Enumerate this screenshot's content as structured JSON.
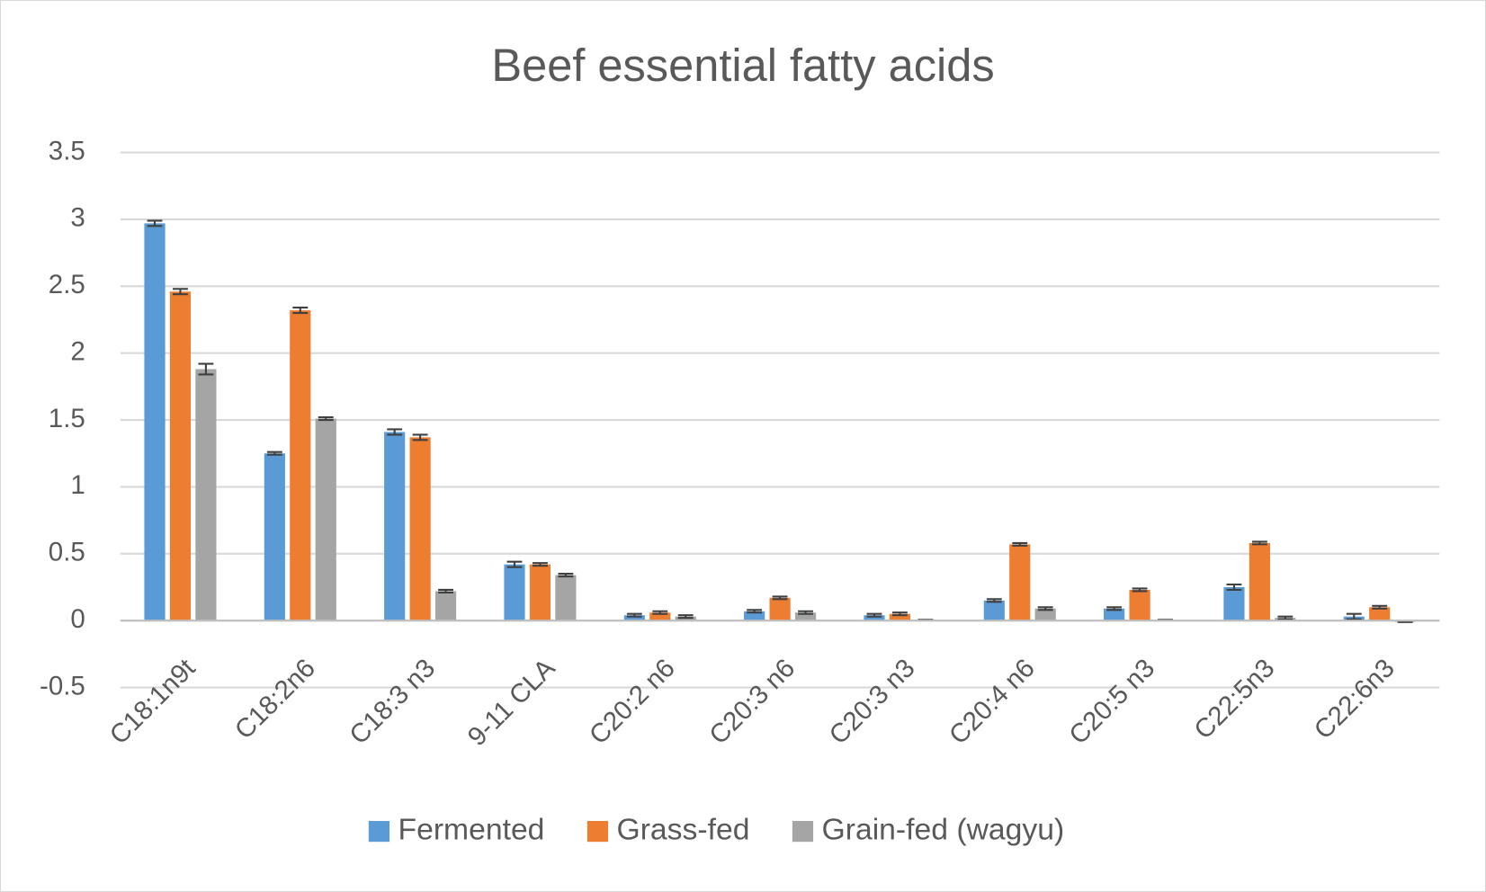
{
  "chart_data": {
    "type": "bar",
    "title": "Beef essential fatty acids",
    "categories": [
      "C18:1n9t",
      "C18:2n6",
      "C18:3 n3",
      "9-11 CLA",
      "C20:2 n6",
      "C20:3 n6",
      "C20:3 n3",
      "C20:4 n6",
      "C20:5 n3",
      "C22:5n3",
      "C22:6n3"
    ],
    "series": [
      {
        "name": "Fermented",
        "color": "#5b9bd5",
        "values": [
          2.97,
          1.25,
          1.41,
          0.42,
          0.04,
          0.07,
          0.04,
          0.15,
          0.09,
          0.25,
          0.03
        ],
        "errors": [
          0.02,
          0.01,
          0.02,
          0.02,
          0.01,
          0.01,
          0.01,
          0.01,
          0.01,
          0.02,
          0.02
        ]
      },
      {
        "name": "Grass-fed",
        "color": "#ed7d31",
        "values": [
          2.46,
          2.32,
          1.37,
          0.42,
          0.06,
          0.17,
          0.05,
          0.57,
          0.23,
          0.58,
          0.1
        ],
        "errors": [
          0.02,
          0.02,
          0.02,
          0.01,
          0.01,
          0.01,
          0.01,
          0.01,
          0.01,
          0.01,
          0.01
        ]
      },
      {
        "name": "Grain-fed (wagyu)",
        "color": "#a5a5a5",
        "values": [
          1.88,
          1.51,
          0.22,
          0.34,
          0.03,
          0.06,
          0.005,
          0.09,
          0.005,
          0.02,
          -0.01
        ],
        "errors": [
          0.04,
          0.01,
          0.01,
          0.01,
          0.01,
          0.01,
          0.0,
          0.01,
          0.0,
          0.01,
          0.0
        ]
      }
    ],
    "ylim": [
      -0.5,
      3.5
    ],
    "yticks": [
      -0.5,
      0,
      0.5,
      1,
      1.5,
      2,
      2.5,
      3,
      3.5
    ],
    "grid": true,
    "legend": "bottom"
  }
}
